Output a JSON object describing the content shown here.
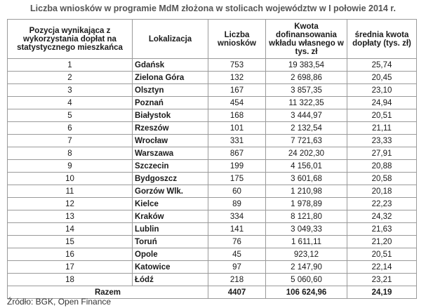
{
  "title": "Liczba wniosków w programie MdM złożona w stolicach województw w I połowie 2014 r.",
  "headers": {
    "position": "Pozycja wynikająca z wykorzystania dopłat na statystycznego mieszkańca",
    "location": "Lokalizacja",
    "count": "Liczba wniosków",
    "dofinancing": "Kwota dofinansowania wkładu własnego w tys. zł",
    "average": "średnia kwota dopłaty (tys. zł)"
  },
  "rows": [
    {
      "pos": "1",
      "city": "Gdańsk",
      "count": "753",
      "dof": "19 383,54",
      "avg": "25,74"
    },
    {
      "pos": "2",
      "city": "Zielona Góra",
      "count": "132",
      "dof": "2 698,86",
      "avg": "20,45"
    },
    {
      "pos": "3",
      "city": "Olsztyn",
      "count": "167",
      "dof": "3 857,35",
      "avg": "23,10"
    },
    {
      "pos": "4",
      "city": "Poznań",
      "count": "454",
      "dof": "11 322,35",
      "avg": "24,94"
    },
    {
      "pos": "5",
      "city": "Białystok",
      "count": "168",
      "dof": "3 444,97",
      "avg": "20,51"
    },
    {
      "pos": "6",
      "city": "Rzeszów",
      "count": "101",
      "dof": "2 132,54",
      "avg": "21,11"
    },
    {
      "pos": "7",
      "city": "Wrocław",
      "count": "331",
      "dof": "7 721,63",
      "avg": "23,33"
    },
    {
      "pos": "8",
      "city": "Warszawa",
      "count": "867",
      "dof": "24 202,30",
      "avg": "27,91"
    },
    {
      "pos": "9",
      "city": "Szczecin",
      "count": "199",
      "dof": "4 156,01",
      "avg": "20,88"
    },
    {
      "pos": "10",
      "city": "Bydgoszcz",
      "count": "175",
      "dof": "3 601,68",
      "avg": "20,58"
    },
    {
      "pos": "11",
      "city": "Gorzów Wlk.",
      "count": "60",
      "dof": "1 210,98",
      "avg": "20,18"
    },
    {
      "pos": "12",
      "city": "Kielce",
      "count": "89",
      "dof": "1 978,89",
      "avg": "22,23"
    },
    {
      "pos": "13",
      "city": "Kraków",
      "count": "334",
      "dof": "8 121,80",
      "avg": "24,32"
    },
    {
      "pos": "14",
      "city": "Lublin",
      "count": "141",
      "dof": "3 049,33",
      "avg": "21,63"
    },
    {
      "pos": "15",
      "city": "Toruń",
      "count": "76",
      "dof": "1 611,11",
      "avg": "21,20"
    },
    {
      "pos": "16",
      "city": "Opole",
      "count": "45",
      "dof": "923,12",
      "avg": "20,51"
    },
    {
      "pos": "17",
      "city": "Katowice",
      "count": "97",
      "dof": "2 147,90",
      "avg": "22,14"
    },
    {
      "pos": "18",
      "city": "Łódź",
      "count": "218",
      "dof": "5 060,60",
      "avg": "23,21"
    }
  ],
  "total": {
    "label": "Razem",
    "count": "4407",
    "dof": "106 624,96",
    "avg": "24,19"
  },
  "source": "Źródło: BGK, Open Finance"
}
